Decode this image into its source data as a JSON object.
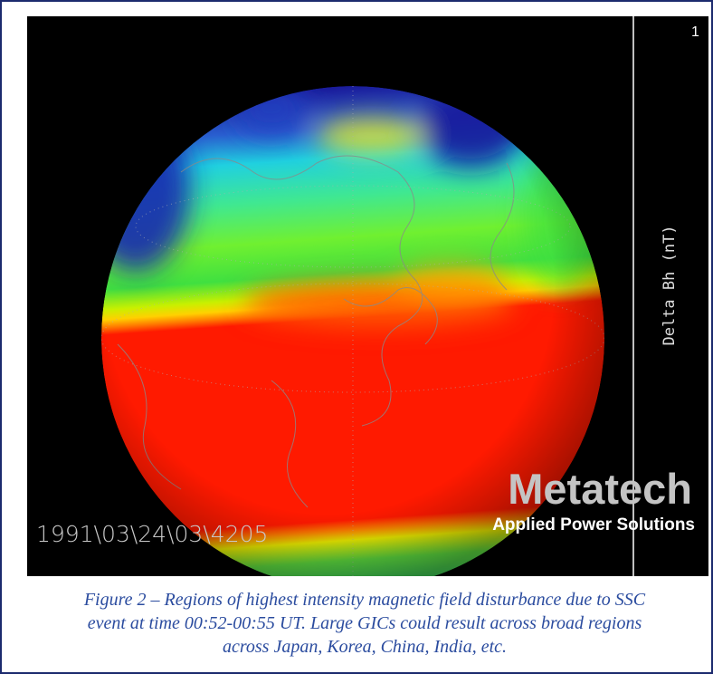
{
  "figure": {
    "corner_label": "1",
    "colorbar_label": "Delta Bh (nT)",
    "logo": {
      "name": "Metatech",
      "tagline": "Applied Power Solutions"
    },
    "timestamp": "1991\\03\\24\\03\\4205"
  },
  "caption": {
    "lines": [
      "Figure 2 – Regions of highest intensity magnetic field disturbance due to SSC",
      "event at time 00:52-00:55 UT.  Large GICs could result across broad regions",
      "across Japan, Korea, China, India, etc."
    ]
  }
}
